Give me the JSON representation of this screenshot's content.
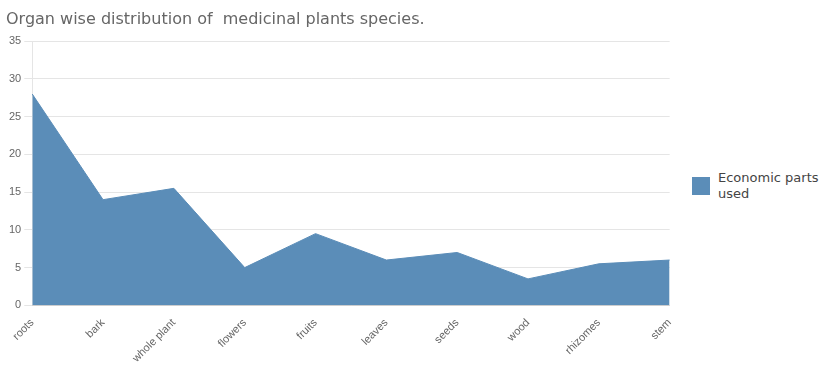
{
  "chart_data": {
    "type": "area",
    "title": "Organ wise distribution of  medicinal plants species.",
    "categories": [
      "roots",
      "bark",
      "whole plant",
      "flowers",
      "fruits",
      "leaves",
      "seeds",
      "wood",
      "rhizomes",
      "stem"
    ],
    "series": [
      {
        "name": "Economic parts\nused",
        "color": "#5B8DB8",
        "values": [
          28,
          14,
          15.5,
          5,
          9.5,
          6,
          7,
          3.5,
          5.5,
          6
        ]
      }
    ],
    "ylim": [
      0,
      35
    ],
    "yticks": [
      0,
      5,
      10,
      15,
      20,
      25,
      30,
      35
    ],
    "grid": "y",
    "legend": "right"
  }
}
